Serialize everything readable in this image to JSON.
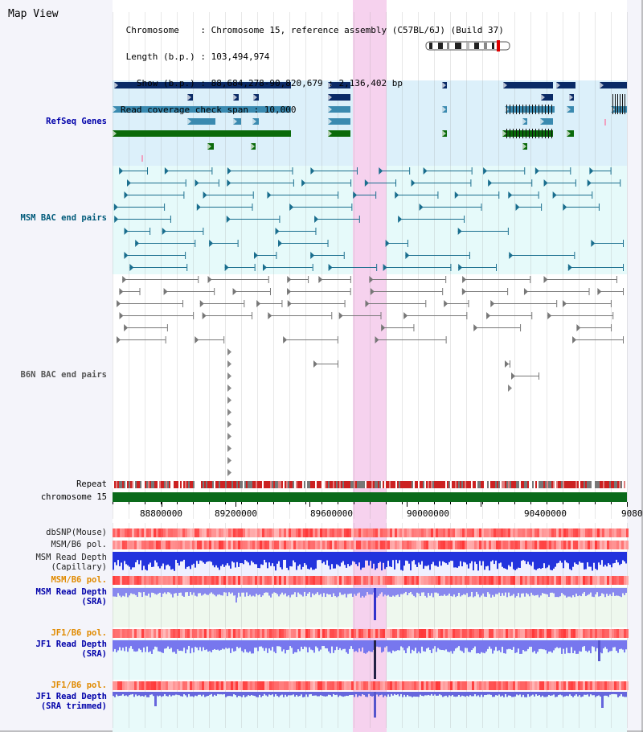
{
  "header": {
    "title": "Map View",
    "info": [
      " Chromosome    : Chromosome 15, reference assembly (C57BL/6J) (Build 37)",
      " Length (b.p.) : 103,494,974",
      "   Show (b.p.) : 88,684,278-90,820,679 : 2,136,402 bp",
      "Read coverage check span : 10,000"
    ]
  },
  "tracks": {
    "refseq": "RefSeq Genes",
    "msm_bac": "MSM BAC end pairs",
    "b6n_bac": "B6N BAC end pairs",
    "repeat": "Repeat",
    "chromosome": "chromosome 15",
    "dbsnp": "dbSNP(Mouse)",
    "msm_b6_pol": "MSM/B6 pol.",
    "msm_depth_cap": [
      "MSM Read Depth",
      "(Capillary)"
    ],
    "msm_b6_pol2": "MSM/B6 pol.",
    "msm_depth_sra": [
      "MSM Read Depth",
      "(SRA)"
    ],
    "jf1_b6_pol": "JF1/B6 pol.",
    "jf1_depth_sra": [
      "JF1 Read Depth",
      "(SRA)"
    ],
    "jf1_b6_pol2": "JF1/B6 pol.",
    "jf1_depth_trim": [
      "JF1 Read Depth",
      "(SRA trimmed)"
    ]
  },
  "axis": {
    "ticks": [
      "88800000",
      "89200000",
      "89600000",
      "90000000",
      "90400000",
      "9080"
    ]
  },
  "colors": {
    "refseq_dark": "#0a2a66",
    "refseq_mid": "#3a8ab0",
    "refseq_green": "#0a6a0a",
    "highlight": "#f6d2ee",
    "msm_label": "#005a7a",
    "b6n_label": "#555555",
    "orange_label": "#e08a00",
    "blue_label": "#0000aa"
  }
}
